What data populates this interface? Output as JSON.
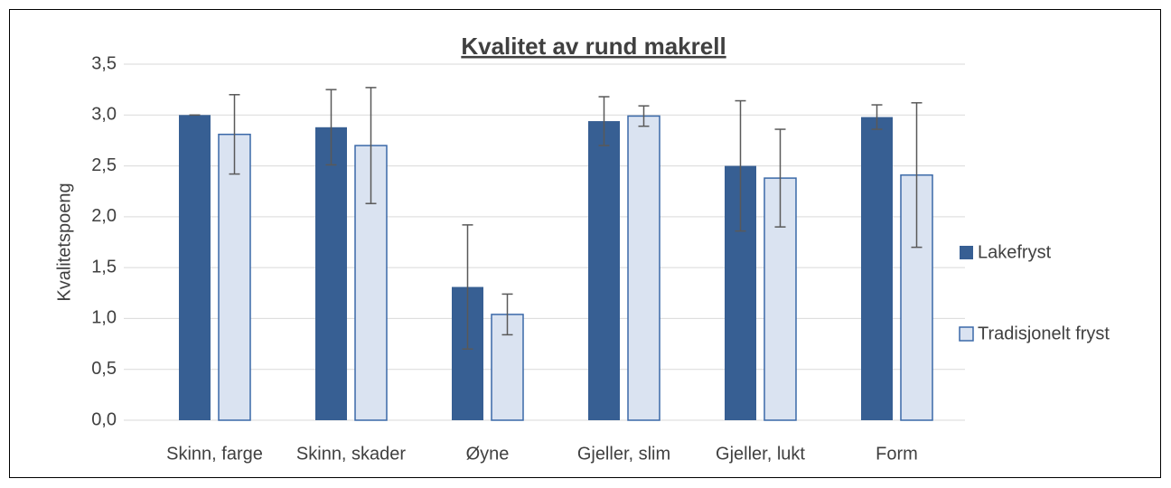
{
  "chart_data": {
    "type": "bar",
    "title": "Kvalitet av rund makrell",
    "y_label": "Kvalitetspoeng",
    "categories": [
      "Skinn, farge",
      "Skinn, skader",
      "Øyne",
      "Gjeller, slim",
      "Gjeller, lukt",
      "Form"
    ],
    "series": [
      {
        "name": "Lakefryst",
        "color": "#375f93",
        "values": [
          3.0,
          2.88,
          1.31,
          2.94,
          2.5,
          2.98
        ],
        "errors": [
          0.0,
          0.37,
          0.61,
          0.24,
          0.64,
          0.12
        ]
      },
      {
        "name": "Tradisjonelt fryst",
        "color": "#dae3f1",
        "values": [
          2.81,
          2.7,
          1.04,
          2.99,
          2.38,
          2.41
        ],
        "errors": [
          0.39,
          0.57,
          0.2,
          0.1,
          0.48,
          0.71
        ]
      }
    ],
    "ylim": [
      0,
      3.5
    ],
    "yticks": [
      {
        "value": 0,
        "label": "0,0"
      },
      {
        "value": 0.5,
        "label": "0,5"
      },
      {
        "value": 1,
        "label": "1,0"
      },
      {
        "value": 1.5,
        "label": "1,5"
      },
      {
        "value": 2,
        "label": "2,0"
      },
      {
        "value": 2.5,
        "label": "2,5"
      },
      {
        "value": 3,
        "label": "3,0"
      },
      {
        "value": 3.5,
        "label": "3,5"
      }
    ],
    "grid": true,
    "legend": "right"
  }
}
